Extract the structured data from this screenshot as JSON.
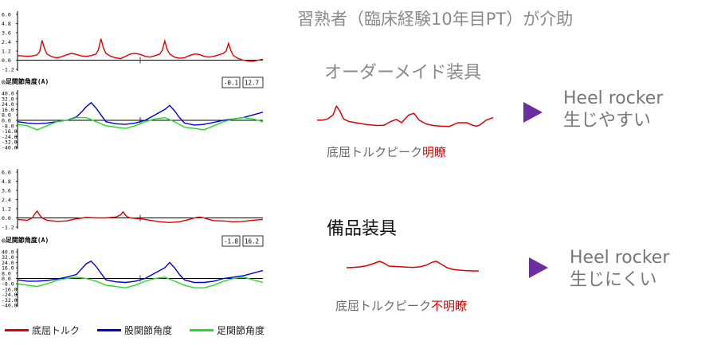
{
  "title": "習熟者（臨床経験10年目PT）が介助",
  "conditions": [
    {
      "name": "オーダーメイド装具",
      "caption_prefix": "底屈トルクピーク",
      "caption_emph": "明瞭",
      "result_line1": "Heel rocker",
      "result_line2": "生じやすい"
    },
    {
      "name": "備品装具",
      "caption_prefix": "底屈トルクピーク",
      "caption_emph": "不明瞭",
      "result_line1": "Heel rocker",
      "result_line2": "生じにくい"
    }
  ],
  "legend": [
    {
      "label": "底屈トルク",
      "color": "#e00000"
    },
    {
      "label": "股関節角度",
      "color": "#0000dd"
    },
    {
      "label": "足関節角度",
      "color": "#22dd22"
    }
  ],
  "colors": {
    "torque": "#e00000",
    "hip": "#0000dd",
    "ankle": "#22dd22",
    "accent": "#6a2ea0"
  },
  "chart_data": [
    {
      "type": "line",
      "panel": "top-torque",
      "ylabels": [
        "6.0",
        "4.8",
        "3.6",
        "2.4",
        "1.2",
        "0.0",
        "-1.2"
      ],
      "ylim": [
        -1.2,
        6.0
      ],
      "series": [
        {
          "name": "底屈トルク",
          "x": [
            0,
            2,
            4,
            6,
            8,
            9,
            10,
            11,
            12,
            14,
            16,
            18,
            20,
            22,
            24,
            26,
            28,
            30,
            32,
            33,
            34,
            35,
            36,
            38,
            40,
            42,
            44,
            46,
            48,
            50,
            52,
            54,
            56,
            58,
            59,
            60,
            61,
            62,
            64,
            66,
            68,
            70,
            72,
            74,
            76,
            78,
            80,
            82,
            84,
            85,
            86,
            87,
            88,
            90,
            92,
            94,
            96,
            98,
            100
          ],
          "values": [
            0.6,
            0.55,
            0.5,
            0.55,
            0.7,
            1.1,
            2.6,
            1.5,
            0.8,
            0.45,
            0.3,
            0.45,
            0.7,
            0.9,
            0.75,
            0.55,
            0.5,
            0.6,
            0.8,
            1.4,
            2.8,
            1.6,
            0.9,
            0.5,
            0.3,
            0.2,
            0.5,
            0.8,
            0.9,
            0.75,
            0.5,
            0.4,
            0.6,
            0.8,
            1.3,
            2.5,
            1.4,
            0.8,
            0.4,
            0.25,
            0.3,
            0.6,
            0.8,
            0.75,
            0.5,
            0.4,
            0.5,
            0.7,
            0.9,
            1.2,
            2.2,
            1.2,
            0.6,
            0.2,
            0.0,
            -0.1,
            -0.15,
            0.0,
            0.1
          ]
        }
      ]
    },
    {
      "type": "line",
      "panel": "top-angles",
      "panel_label": "◎足関節角度(A)",
      "readouts": [
        "-0.1",
        "12.7"
      ],
      "ylabels": [
        "40.0",
        "32.0",
        "24.0",
        "16.0",
        "8.0",
        "0.0",
        "-8.0",
        "-16.0",
        "-24.0",
        "-32.0",
        "-40.0"
      ],
      "ylim": [
        -40,
        40
      ],
      "series": [
        {
          "name": "股関節角度",
          "x": [
            0,
            4,
            8,
            12,
            16,
            20,
            24,
            26,
            28,
            30,
            32,
            34,
            36,
            40,
            44,
            48,
            52,
            56,
            60,
            62,
            64,
            66,
            68,
            72,
            76,
            80,
            84,
            88,
            92,
            96,
            100
          ],
          "values": [
            -2,
            -4,
            -5,
            -4,
            -2,
            0,
            5,
            12,
            20,
            26,
            18,
            8,
            -2,
            -5,
            -6,
            -4,
            0,
            8,
            16,
            22,
            14,
            4,
            -4,
            -7,
            -6,
            -3,
            0,
            2,
            4,
            8,
            12
          ]
        },
        {
          "name": "足関節角度",
          "x": [
            0,
            4,
            8,
            12,
            16,
            20,
            24,
            28,
            32,
            36,
            40,
            44,
            48,
            52,
            56,
            60,
            64,
            68,
            72,
            76,
            80,
            84,
            88,
            92,
            96,
            100
          ],
          "values": [
            -6,
            -8,
            -14,
            -8,
            -2,
            0,
            4,
            4,
            -2,
            -8,
            -10,
            -12,
            -8,
            -2,
            2,
            4,
            -2,
            -10,
            -12,
            -14,
            -8,
            -2,
            2,
            4,
            2,
            -2
          ]
        }
      ]
    },
    {
      "type": "line",
      "panel": "bottom-torque",
      "ylabels": [
        "6.0",
        "4.8",
        "3.6",
        "2.4",
        "1.2",
        "0.0",
        "-1.2"
      ],
      "ylim": [
        -1.2,
        6.0
      ],
      "series": [
        {
          "name": "底屈トルク",
          "x": [
            0,
            4,
            6,
            7,
            8,
            9,
            10,
            12,
            16,
            20,
            24,
            28,
            32,
            36,
            40,
            42,
            43,
            44,
            45,
            46,
            50,
            54,
            58,
            62,
            66,
            70,
            72,
            74,
            76,
            78,
            80,
            84,
            88,
            92,
            96,
            100
          ],
          "values": [
            -0.2,
            -0.3,
            0.0,
            0.5,
            0.9,
            0.4,
            0.0,
            -0.3,
            -0.45,
            -0.4,
            -0.1,
            0.05,
            0.0,
            0.0,
            0.1,
            0.4,
            0.8,
            0.35,
            0.1,
            0.0,
            -0.1,
            -0.3,
            -0.5,
            -0.6,
            -0.5,
            -0.2,
            0.0,
            0.1,
            0.0,
            -0.2,
            -0.35,
            -0.4,
            -0.5,
            -0.45,
            -0.3,
            -0.2
          ]
        }
      ]
    },
    {
      "type": "line",
      "panel": "bottom-angles",
      "panel_label": "◎足関節角度(A)",
      "readouts": [
        "-1.8",
        "16.2"
      ],
      "ylabels": [
        "40.0",
        "32.0",
        "24.0",
        "16.0",
        "8.0",
        "0.0",
        "-8.0",
        "-16.0",
        "-24.0",
        "-32.0",
        "-40.0"
      ],
      "ylim": [
        -40,
        40
      ],
      "series": [
        {
          "name": "股関節角度",
          "x": [
            0,
            4,
            8,
            12,
            16,
            20,
            24,
            26,
            28,
            30,
            32,
            34,
            36,
            40,
            44,
            48,
            52,
            56,
            60,
            62,
            64,
            66,
            68,
            72,
            76,
            80,
            84,
            88,
            92,
            96,
            100
          ],
          "values": [
            -2,
            -4,
            -4,
            -3,
            -1,
            2,
            6,
            14,
            22,
            26,
            18,
            8,
            -2,
            -5,
            -6,
            -4,
            0,
            8,
            16,
            24,
            16,
            6,
            -2,
            -6,
            -6,
            -4,
            0,
            2,
            4,
            8,
            12
          ]
        },
        {
          "name": "足関節角度",
          "x": [
            0,
            4,
            8,
            12,
            16,
            20,
            24,
            28,
            32,
            36,
            40,
            44,
            48,
            52,
            56,
            60,
            64,
            68,
            72,
            76,
            80,
            84,
            88,
            92,
            96,
            100
          ],
          "values": [
            -8,
            -10,
            -12,
            -8,
            -3,
            0,
            2,
            0,
            -4,
            -10,
            -12,
            -14,
            -10,
            -4,
            0,
            2,
            -4,
            -10,
            -14,
            -14,
            -10,
            -4,
            0,
            2,
            -2,
            -6
          ]
        }
      ]
    },
    {
      "type": "line",
      "panel": "sketch-custom",
      "series": [
        {
          "name": "",
          "x": [
            0,
            3,
            6,
            9,
            11,
            13,
            15,
            18,
            22,
            28,
            34,
            38,
            42,
            45,
            48,
            52,
            55,
            58,
            62,
            66,
            70,
            75,
            80,
            85,
            88,
            90,
            92,
            96,
            100
          ],
          "values": [
            0.35,
            0.35,
            0.4,
            0.55,
            0.9,
            0.7,
            0.4,
            0.3,
            0.25,
            0.18,
            0.14,
            0.15,
            0.3,
            0.38,
            0.25,
            0.55,
            0.62,
            0.35,
            0.2,
            0.14,
            0.12,
            0.1,
            0.25,
            0.25,
            0.16,
            0.12,
            0.14,
            0.35,
            0.45
          ]
        }
      ]
    },
    {
      "type": "line",
      "panel": "sketch-standard",
      "series": [
        {
          "name": "",
          "x": [
            0,
            5,
            10,
            15,
            20,
            25,
            28,
            32,
            36,
            40,
            45,
            50,
            55,
            60,
            65,
            68,
            72,
            76,
            80,
            85,
            90,
            95,
            100
          ],
          "values": [
            0.3,
            0.32,
            0.35,
            0.42,
            0.55,
            0.7,
            0.6,
            0.4,
            0.38,
            0.36,
            0.34,
            0.32,
            0.35,
            0.45,
            0.65,
            0.7,
            0.5,
            0.3,
            0.2,
            0.15,
            0.12,
            0.1,
            0.1
          ]
        }
      ]
    }
  ]
}
